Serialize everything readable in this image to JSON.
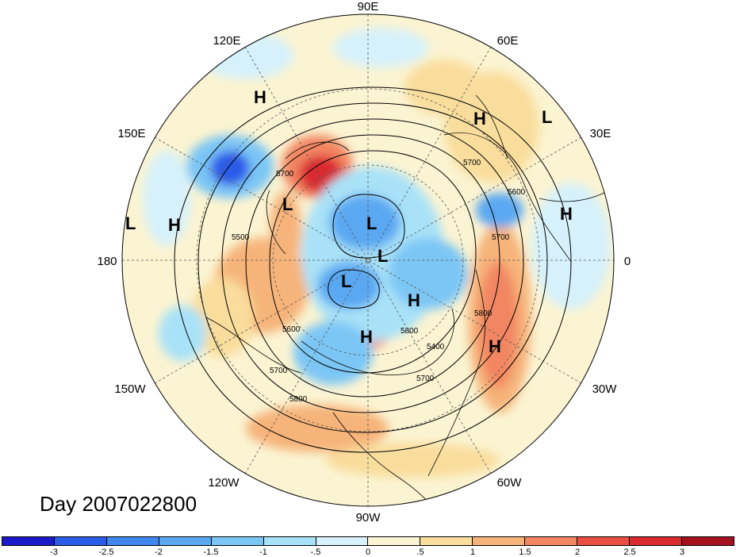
{
  "title": "Day 2007022800",
  "longitude_labels": {
    "top": "90E",
    "upper_left": "120E",
    "upper_right": "60E",
    "left_upper": "150E",
    "right_upper": "30E",
    "left": "180",
    "right": "0",
    "left_lower": "150W",
    "right_lower": "30W",
    "lower_left": "120W",
    "lower_right": "60W",
    "bottom": "90W"
  },
  "pressure_centers": [
    {
      "label": "H"
    },
    {
      "label": "H"
    },
    {
      "label": "L"
    },
    {
      "label": "L"
    },
    {
      "label": "H"
    },
    {
      "label": "L"
    },
    {
      "label": "L"
    },
    {
      "label": "H"
    },
    {
      "label": "L"
    },
    {
      "label": "L"
    },
    {
      "label": "H"
    },
    {
      "label": "H"
    },
    {
      "label": "H"
    }
  ],
  "contour_labels": [
    "5700",
    "5500",
    "5600",
    "5700",
    "5800",
    "5800",
    "5700",
    "5400",
    "5700",
    "5600",
    "5700",
    "5800"
  ],
  "colorbar": {
    "ticks": [
      "-3",
      "-2.5",
      "-2",
      "-1.5",
      "-1",
      "-.5",
      "0",
      ".5",
      "1",
      "1.5",
      "2",
      "2.5",
      "3"
    ],
    "colors": [
      "#1a1ac8",
      "#2b5ce8",
      "#3f86ef",
      "#5aa8f2",
      "#7cc6f5",
      "#a9e2f8",
      "#d6f1fb",
      "#fbf4d2",
      "#f9dd9c",
      "#f6b47a",
      "#f28662",
      "#ea4e43",
      "#d92a30",
      "#a3121e"
    ]
  }
}
